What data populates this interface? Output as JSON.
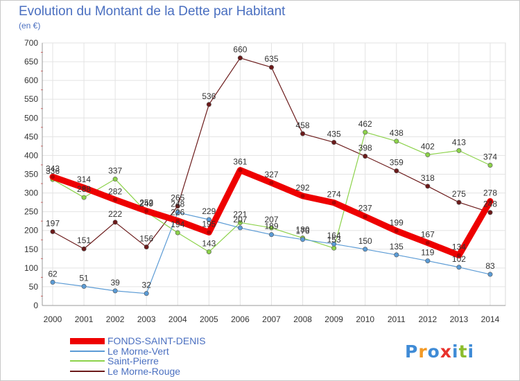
{
  "title": "Evolution du Montant de la Dette par Habitant",
  "subtitle": "(en €)",
  "logo": {
    "letters": [
      "P",
      "r",
      "o",
      "x",
      "i",
      "t",
      "i"
    ],
    "colors": [
      "#3f8bd6",
      "#f39a26",
      "#3f8bd6",
      "#e8322c",
      "#3f8bd6",
      "#8cbd2c",
      "#3f8bd6"
    ]
  },
  "chart_data": {
    "type": "line",
    "x": [
      "2000",
      "2001",
      "2002",
      "2003",
      "2004",
      "2005",
      "2006",
      "2007",
      "2008",
      "2009",
      "2010",
      "2011",
      "2012",
      "2013",
      "2014"
    ],
    "ylim": [
      0,
      700
    ],
    "yticks": [
      "0",
      "50",
      "100",
      "150",
      "200",
      "250",
      "300",
      "350",
      "400",
      "450",
      "500",
      "550",
      "600",
      "650",
      "700"
    ],
    "grid": true,
    "legend_position": "bottom-left",
    "series": [
      {
        "name": "Le Morne-Rouge",
        "color": "#6b1a1a",
        "values": [
          197,
          151,
          222,
          156,
          265,
          536,
          660,
          635,
          458,
          435,
          398,
          359,
          318,
          275,
          248
        ],
        "labels": [
          "197",
          "151",
          "222",
          "156",
          "265",
          "536",
          "660",
          "635",
          "458",
          "435",
          "398",
          "359",
          "318",
          "275",
          "248"
        ]
      },
      {
        "name": "Saint-Pierre",
        "color": "#8cd24a",
        "values": [
          336,
          288,
          337,
          249,
          194,
          143,
          221,
          207,
          180,
          153,
          462,
          438,
          402,
          413,
          374
        ],
        "labels": [
          "336",
          "288",
          "337",
          "249",
          "194",
          "143",
          "221",
          "207",
          "180",
          "153",
          "462",
          "438",
          "402",
          "413",
          "374"
        ]
      },
      {
        "name": "Le Morne-Vert",
        "color": "#5b9bd5",
        "values": [
          62,
          51,
          39,
          32,
          248,
          229,
          207,
          189,
          176,
          164,
          150,
          135,
          119,
          102,
          83
        ],
        "labels": [
          "62",
          "51",
          "39",
          "32",
          "248",
          "229",
          "207",
          "189",
          "176",
          "164",
          "150",
          "135",
          "119",
          "102",
          "83"
        ]
      },
      {
        "name": "FONDS-SAINT-DENIS",
        "color": "#ee0000",
        "values": [
          343,
          314,
          282,
          252,
          226,
          195,
          361,
          327,
          292,
          274,
          237,
          199,
          167,
          134,
          278
        ],
        "labels": [
          "343",
          "314",
          "282",
          "252",
          "226",
          "195",
          "361",
          "327",
          "292",
          "274",
          "237",
          "199",
          "167",
          "134",
          "278"
        ]
      }
    ]
  },
  "legend": [
    {
      "label": "FONDS-SAINT-DENIS",
      "color": "#ee0000",
      "thick": true
    },
    {
      "label": "Le Morne-Vert",
      "color": "#5b9bd5",
      "thick": false
    },
    {
      "label": "Saint-Pierre",
      "color": "#8cd24a",
      "thick": false
    },
    {
      "label": "Le Morne-Rouge",
      "color": "#6b1a1a",
      "thick": false
    }
  ]
}
